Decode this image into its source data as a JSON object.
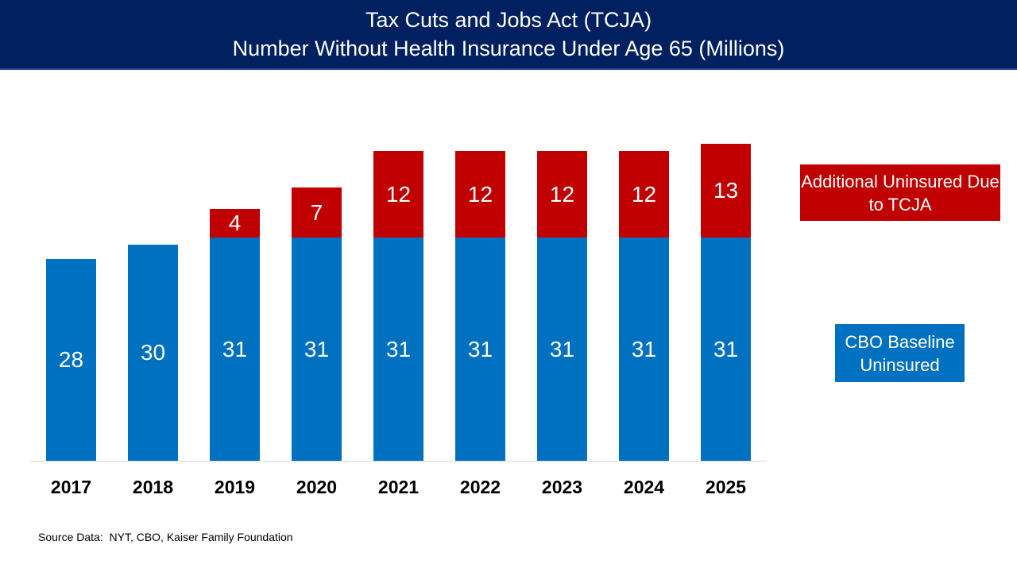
{
  "slide": {
    "title": "Tax Cuts and Jobs Act (TCJA)",
    "subtitle": "Number Without Health Insurance Under Age 65 (Millions)",
    "source_note": "Source Data:  NYT, CBO, Kaiser Family Foundation"
  },
  "legend": {
    "tcja_label": "Additional Uninsured Due to TCJA",
    "baseline_label": "CBO Baseline Uninsured"
  },
  "colors": {
    "header_bg": "#002060",
    "baseline_blue": "#0070C0",
    "tcja_red": "#C00000",
    "axis_line": "#D9D9D9",
    "value_label_text": "#FFFFFF",
    "year_label_text": "#000000"
  },
  "chart_data": {
    "type": "bar",
    "stacked": true,
    "title": "Tax Cuts and Jobs Act (TCJA)",
    "subtitle": "Number Without Health Insurance Under Age 65 (Millions)",
    "categories": [
      "2017",
      "2018",
      "2019",
      "2020",
      "2021",
      "2022",
      "2023",
      "2024",
      "2025"
    ],
    "series": [
      {
        "name": "CBO Baseline Uninsured",
        "color": "#0070C0",
        "values": [
          28,
          30,
          31,
          31,
          31,
          31,
          31,
          31,
          31
        ]
      },
      {
        "name": "Additional Uninsured Due to TCJA",
        "color": "#C00000",
        "values": [
          0,
          0,
          4,
          7,
          12,
          12,
          12,
          12,
          13
        ]
      }
    ],
    "xlabel": "",
    "ylabel": "",
    "ylim": [
      0,
      46
    ],
    "grid": false,
    "legend_position": "right",
    "data_labels": true
  }
}
